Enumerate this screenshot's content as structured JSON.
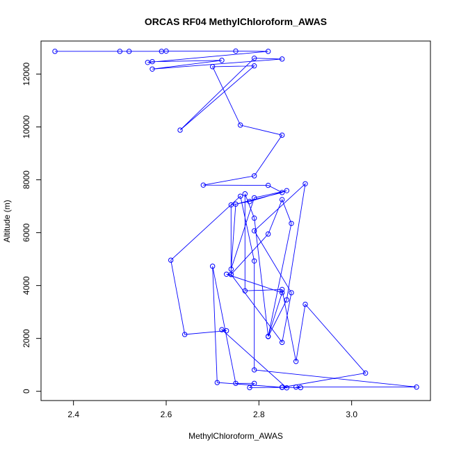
{
  "chart_data": {
    "type": "line",
    "title": "ORCAS RF04 MethylChloroform_AWAS",
    "xlabel": "MethylChloroform_AWAS",
    "ylabel": "Altitude (m)",
    "xlim": [
      2.33,
      3.17
    ],
    "ylim": [
      -350,
      13250
    ],
    "xticks": [
      "2.4",
      "2.6",
      "2.8",
      "3.0"
    ],
    "yticks": [
      "0",
      "2000",
      "4000",
      "6000",
      "8000",
      "10000",
      "12000"
    ],
    "xtick_values": [
      2.4,
      2.6,
      2.8,
      3.0
    ],
    "ytick_values": [
      0,
      2000,
      4000,
      6000,
      8000,
      10000,
      12000
    ],
    "grid": false,
    "color": "#0000ff",
    "markers": "open-circle",
    "series": [
      {
        "x": [
          2.36,
          2.5,
          2.52,
          2.59,
          2.6,
          2.75,
          2.82,
          2.56,
          2.57,
          2.72,
          2.57,
          2.85,
          2.79,
          2.63,
          2.79,
          2.7,
          2.76,
          2.85,
          2.79,
          2.68,
          2.82,
          2.85,
          2.75,
          2.74,
          2.79,
          2.86,
          2.78,
          2.74,
          2.74,
          2.82,
          2.85,
          2.87,
          2.82,
          2.86,
          2.9,
          2.79,
          2.87,
          2.85,
          2.74,
          2.73,
          2.85,
          2.82,
          2.79,
          2.77,
          2.77,
          2.85,
          2.88,
          2.9,
          3.03,
          2.85,
          2.86,
          2.72,
          2.73,
          2.64,
          2.61,
          2.76,
          2.79,
          2.79,
          3.14,
          2.88,
          2.89,
          2.85,
          2.71,
          2.7,
          2.75,
          2.79,
          2.78,
          2.85
        ],
        "y": [
          12860,
          12860,
          12860,
          12860,
          12870,
          12870,
          12860,
          12440,
          12470,
          12520,
          12190,
          12570,
          12600,
          9880,
          12310,
          12280,
          10070,
          9690,
          8150,
          7800,
          7790,
          7520,
          7080,
          4620,
          7320,
          7590,
          7180,
          7050,
          4420,
          5950,
          7250,
          6350,
          2070,
          3460,
          7850,
          6070,
          3730,
          1850,
          4420,
          4430,
          3730,
          2080,
          6550,
          7470,
          3800,
          3850,
          1130,
          3290,
          690,
          150,
          130,
          2330,
          2290,
          2150,
          4960,
          7380,
          4930,
          810,
          160,
          160,
          140,
          150,
          330,
          4730,
          300,
          300,
          140,
          150
        ]
      }
    ]
  }
}
